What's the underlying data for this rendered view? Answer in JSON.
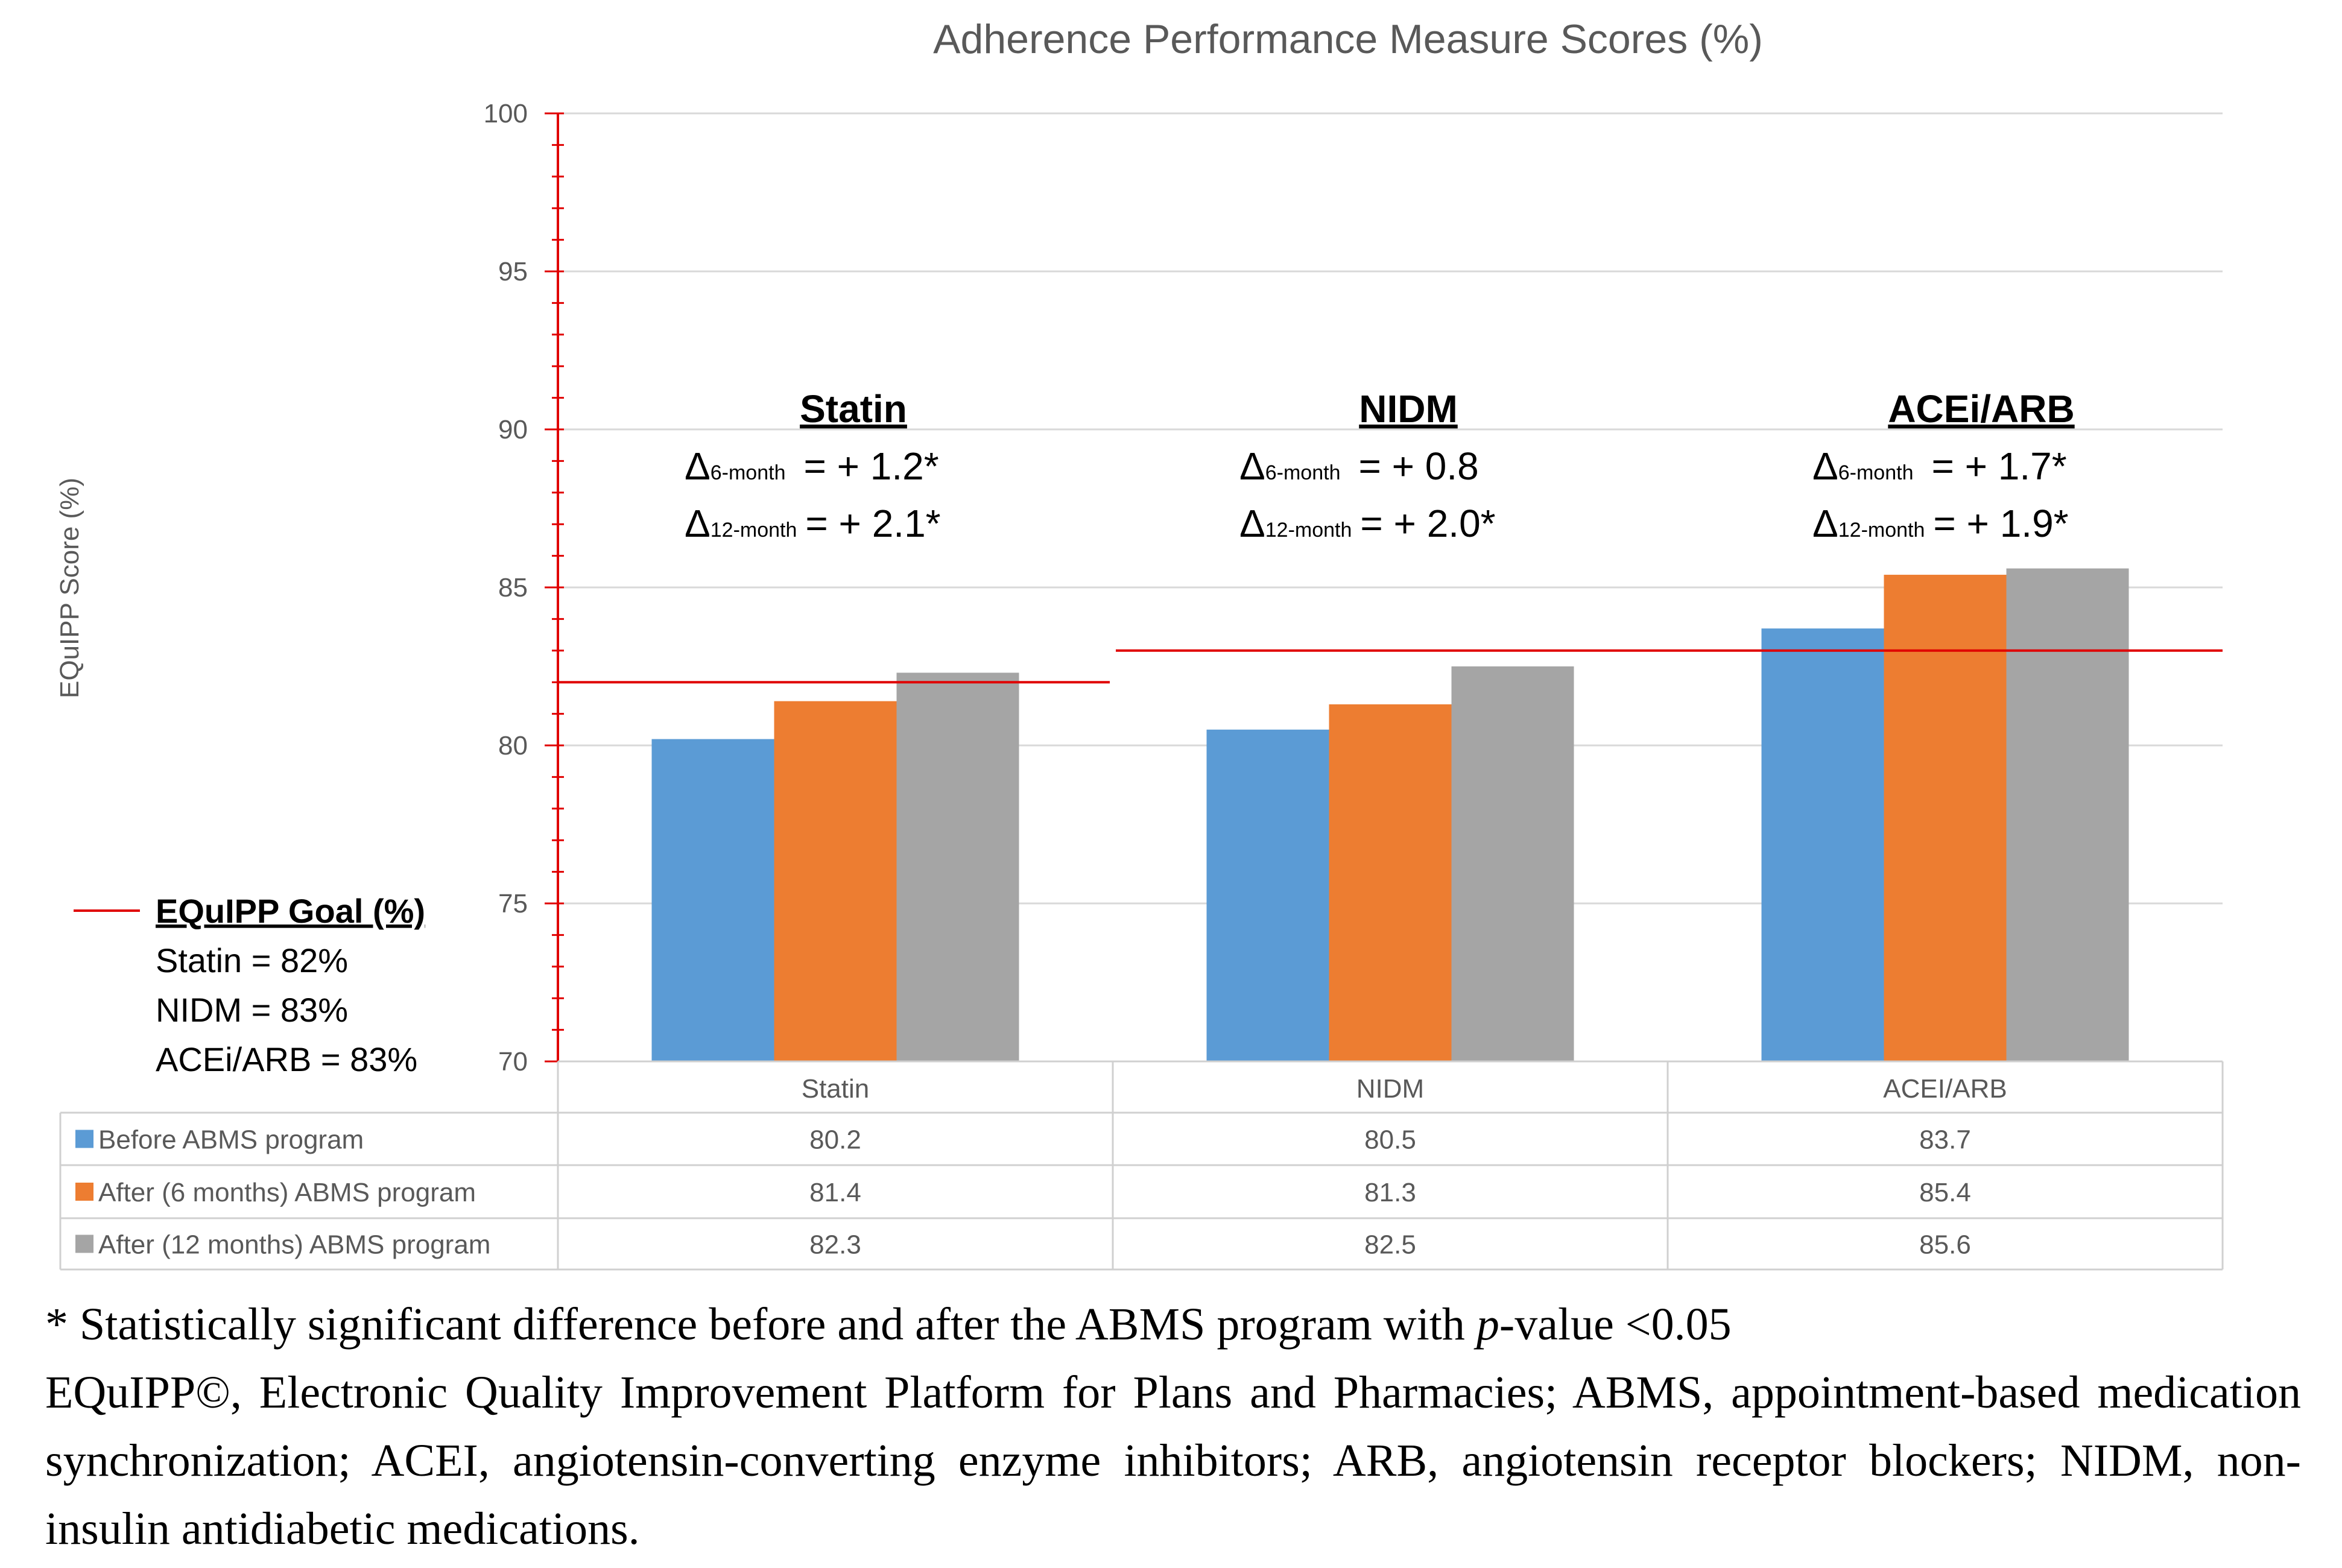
{
  "chart_data": {
    "type": "bar",
    "title": "Adherence Performance Measure Scores (%)",
    "ylabel": "EQuIPP Score (%)",
    "xlabel": "",
    "ylim": [
      70,
      100
    ],
    "yticks": [
      70,
      75,
      80,
      85,
      90,
      95,
      100
    ],
    "categories": [
      "Statin",
      "NIDM",
      "ACEi/ARB"
    ],
    "series": [
      {
        "name": "Before ABMS program",
        "values": [
          80.2,
          80.5,
          83.7
        ],
        "color": "#5b9bd5"
      },
      {
        "name": "After (6 months) ABMS program",
        "values": [
          81.4,
          81.3,
          85.4
        ],
        "color": "#ed7d31"
      },
      {
        "name": "After (12 months) ABMS program",
        "values": [
          82.3,
          82.5,
          85.6
        ],
        "color": "#a5a5a5"
      }
    ],
    "table_values": [
      [
        "80.2",
        "80.5",
        "83.7"
      ],
      [
        "81.4",
        "81.3",
        "85.4"
      ],
      [
        "82.3",
        "82.5",
        "85.6"
      ]
    ],
    "goal_lines": [
      {
        "category": "Statin",
        "value": 82
      },
      {
        "category": "NIDM",
        "value": 83
      },
      {
        "category": "ACEi/ARB",
        "value": 83
      }
    ],
    "goal_color": "#e00000",
    "annotations": [
      {
        "heading": "Statin",
        "d6_label": "Δ",
        "d6_sub": "6-month",
        "d6_value": "= + 1.2*",
        "d12_label": "Δ",
        "d12_sub": "12-month",
        "d12_value": "= + 2.1*"
      },
      {
        "heading": "NIDM",
        "d6_label": "Δ",
        "d6_sub": "6-month",
        "d6_value": "= + 0.8",
        "d12_label": "Δ",
        "d12_sub": "12-month",
        "d12_value": "= + 2.0*"
      },
      {
        "heading": "ACEi/ARB",
        "d6_label": "Δ",
        "d6_sub": "6-month",
        "d6_value": "= + 1.7*",
        "d12_label": "Δ",
        "d12_sub": "12-month",
        "d12_value": "= + 1.9*"
      }
    ],
    "goal_legend": {
      "title": "EQuIPP Goal (%)",
      "items": [
        "Statin = 82%",
        "NIDM = 83%",
        "ACEi/ARB = 83%"
      ]
    },
    "table_header": [
      "Statin",
      "NIDM",
      "ACEI/ARB"
    ],
    "legend_placement": "data-table-left",
    "grid": true
  },
  "caption": {
    "line1_prefix": "* Statistically significant difference before and after the ABMS program with ",
    "line1_italic": "p",
    "line1_suffix": "-value <0.05",
    "line2": "EQuIPP©, Electronic Quality Improvement Platform for Plans and Pharmacies; ABMS, appointment-based medication synchronization; ACEI, angiotensin-converting enzyme inhibitors; ARB, angiotensin receptor blockers; NIDM, non-insulin antidiabetic medications."
  }
}
